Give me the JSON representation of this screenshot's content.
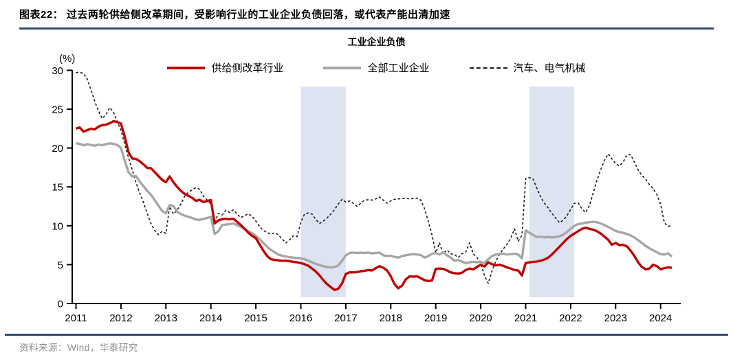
{
  "header": {
    "figure_title": "图表22：  过去两轮供给侧改革期间，受影响行业的工业企业负债回落，或代表产能出清加速"
  },
  "footer": {
    "source": "资料来源：Wind，华泰研究"
  },
  "colors": {
    "rule": "#2f4d6e",
    "title_text": "#000000",
    "footer_text": "#8f8f8f",
    "axis": "#000000",
    "background": "#ffffff"
  },
  "chart_data": {
    "type": "line",
    "title": "工业企业负债",
    "unit_label": "(%)",
    "x_start": 2011.0,
    "points_per_year": 12,
    "x_ticks": [
      2011,
      2012,
      2013,
      2014,
      2015,
      2016,
      2017,
      2018,
      2019,
      2020,
      2021,
      2022,
      2023,
      2024
    ],
    "y_ticks": [
      0,
      5,
      10,
      15,
      20,
      25,
      30
    ],
    "ylim": [
      0,
      30
    ],
    "xlim": [
      2010.9,
      2024.45
    ],
    "grid": false,
    "legend_position": "top",
    "band_color": "#dde3f1",
    "bands": [
      {
        "from": 2016.0,
        "to": 2017.0
      },
      {
        "from": 2021.08,
        "to": 2022.08
      }
    ],
    "series": [
      {
        "name": "供给侧改革行业",
        "color": "#c00000",
        "style": "solid",
        "width": 3.4,
        "values": [
          22.5,
          22.65,
          22.1,
          22.3,
          22.5,
          22.4,
          22.75,
          22.95,
          23.0,
          23.2,
          23.45,
          23.35,
          23.15,
          21.5,
          19.5,
          18.65,
          18.6,
          18.3,
          17.9,
          17.45,
          17.4,
          16.9,
          16.4,
          15.9,
          15.6,
          16.35,
          15.6,
          15.0,
          14.5,
          14.1,
          13.85,
          13.6,
          13.2,
          13.35,
          13.05,
          13.2,
          13.3,
          10.3,
          10.7,
          10.85,
          10.9,
          10.85,
          10.9,
          10.5,
          10.1,
          9.6,
          9.1,
          8.7,
          8.4,
          7.6,
          6.8,
          6.1,
          5.7,
          5.6,
          5.55,
          5.5,
          5.5,
          5.45,
          5.35,
          5.3,
          5.2,
          5.05,
          4.85,
          4.5,
          4.1,
          3.6,
          3.0,
          2.5,
          2.1,
          1.75,
          1.9,
          2.6,
          3.8,
          4.0,
          4.0,
          4.05,
          4.15,
          4.2,
          4.3,
          4.25,
          4.55,
          4.8,
          4.6,
          4.25,
          3.5,
          2.5,
          1.95,
          2.3,
          3.1,
          3.5,
          3.45,
          3.5,
          3.25,
          3.0,
          2.9,
          2.95,
          4.45,
          4.5,
          4.45,
          4.25,
          4.0,
          3.9,
          3.85,
          3.95,
          4.3,
          4.5,
          4.4,
          4.7,
          5.0,
          4.75,
          5.3,
          5.05,
          4.9,
          5.0,
          4.85,
          4.65,
          4.5,
          4.3,
          4.25,
          3.6,
          5.2,
          5.3,
          5.35,
          5.4,
          5.5,
          5.65,
          5.9,
          6.3,
          6.8,
          7.3,
          7.8,
          8.3,
          8.7,
          9.0,
          9.3,
          9.6,
          9.75,
          9.6,
          9.5,
          9.3,
          9.0,
          8.6,
          8.2,
          7.55,
          7.8,
          7.5,
          7.55,
          7.35,
          6.8,
          6.1,
          5.3,
          4.7,
          4.4,
          4.5,
          5.0,
          4.8,
          4.4,
          4.55,
          4.65,
          4.6
        ]
      },
      {
        "name": "全部工业企业",
        "color": "#a6a6a6",
        "style": "solid",
        "width": 3.4,
        "values": [
          20.6,
          20.55,
          20.35,
          20.5,
          20.4,
          20.3,
          20.45,
          20.35,
          20.5,
          20.6,
          20.55,
          20.4,
          20.0,
          18.4,
          16.9,
          16.35,
          16.4,
          15.7,
          15.1,
          14.5,
          14.0,
          13.3,
          12.6,
          11.9,
          11.6,
          12.65,
          12.55,
          11.8,
          11.5,
          11.3,
          11.15,
          11.0,
          10.8,
          10.75,
          10.9,
          11.0,
          11.15,
          8.95,
          9.3,
          10.1,
          10.15,
          10.2,
          10.3,
          10.1,
          9.85,
          9.6,
          9.3,
          9.05,
          8.7,
          8.3,
          7.8,
          7.3,
          6.9,
          6.6,
          6.3,
          6.15,
          6.05,
          5.95,
          5.9,
          5.85,
          5.8,
          5.7,
          5.5,
          5.3,
          5.1,
          4.95,
          4.8,
          4.7,
          4.65,
          4.7,
          4.9,
          5.5,
          6.2,
          6.5,
          6.55,
          6.5,
          6.55,
          6.5,
          6.55,
          6.45,
          6.5,
          6.55,
          6.2,
          6.1,
          6.15,
          6.0,
          5.9,
          6.1,
          6.2,
          6.3,
          6.35,
          6.3,
          6.25,
          5.9,
          6.1,
          6.4,
          6.5,
          6.3,
          6.6,
          6.2,
          5.9,
          5.5,
          5.6,
          5.4,
          5.2,
          5.3,
          5.35,
          5.3,
          5.35,
          5.2,
          5.7,
          6.1,
          6.3,
          6.35,
          6.4,
          6.3,
          6.35,
          6.4,
          6.3,
          5.8,
          9.4,
          9.1,
          8.8,
          8.55,
          8.6,
          8.5,
          8.55,
          8.5,
          8.55,
          8.65,
          8.85,
          9.2,
          9.6,
          10.0,
          10.2,
          10.3,
          10.4,
          10.45,
          10.5,
          10.45,
          10.3,
          10.1,
          9.85,
          9.6,
          9.35,
          9.2,
          9.1,
          8.95,
          8.75,
          8.5,
          8.15,
          7.8,
          7.4,
          7.1,
          6.85,
          6.6,
          6.35,
          6.3,
          6.45,
          6.05
        ]
      },
      {
        "name": "汽车、电气机械",
        "color": "#1a1a1a",
        "style": "dashed",
        "width": 1.6,
        "values": [
          29.7,
          29.75,
          29.6,
          28.9,
          27.5,
          26.0,
          24.8,
          23.8,
          24.3,
          25.2,
          24.6,
          23.4,
          22.3,
          20.5,
          18.8,
          17.2,
          15.6,
          14.2,
          13.0,
          11.6,
          10.3,
          9.4,
          8.85,
          9.3,
          9.0,
          12.5,
          11.5,
          12.0,
          12.8,
          13.8,
          14.3,
          14.6,
          14.9,
          14.7,
          13.8,
          13.3,
          12.8,
          10.4,
          11.6,
          11.4,
          12.0,
          11.7,
          12.05,
          11.5,
          11.05,
          11.3,
          11.55,
          11.2,
          10.6,
          9.9,
          9.4,
          9.15,
          8.9,
          9.1,
          8.85,
          8.3,
          7.8,
          8.2,
          8.7,
          8.6,
          10.5,
          11.5,
          11.65,
          11.5,
          10.8,
          10.3,
          10.6,
          11.0,
          11.5,
          12.1,
          12.8,
          13.4,
          13.05,
          13.2,
          12.9,
          12.5,
          12.9,
          13.3,
          13.35,
          13.3,
          13.45,
          13.7,
          13.3,
          12.9,
          13.2,
          13.4,
          13.45,
          13.5,
          13.55,
          13.45,
          13.5,
          13.55,
          13.3,
          12.2,
          10.6,
          8.8,
          6.5,
          7.8,
          6.4,
          6.9,
          6.4,
          6.3,
          5.9,
          6.4,
          6.6,
          7.8,
          6.4,
          5.9,
          5.2,
          3.6,
          2.6,
          4.2,
          5.4,
          6.3,
          7.0,
          7.6,
          8.4,
          9.6,
          8.0,
          8.8,
          16.1,
          16.2,
          16.0,
          14.8,
          13.7,
          12.9,
          12.3,
          11.6,
          11.0,
          10.4,
          10.7,
          11.3,
          12.1,
          12.9,
          12.95,
          12.2,
          11.7,
          12.6,
          14.2,
          15.8,
          17.2,
          18.4,
          19.25,
          18.6,
          18.0,
          17.7,
          18.2,
          19.1,
          19.15,
          18.2,
          17.2,
          16.5,
          16.0,
          15.3,
          14.8,
          14.0,
          12.8,
          10.4,
          9.9,
          10.1
        ]
      }
    ]
  }
}
